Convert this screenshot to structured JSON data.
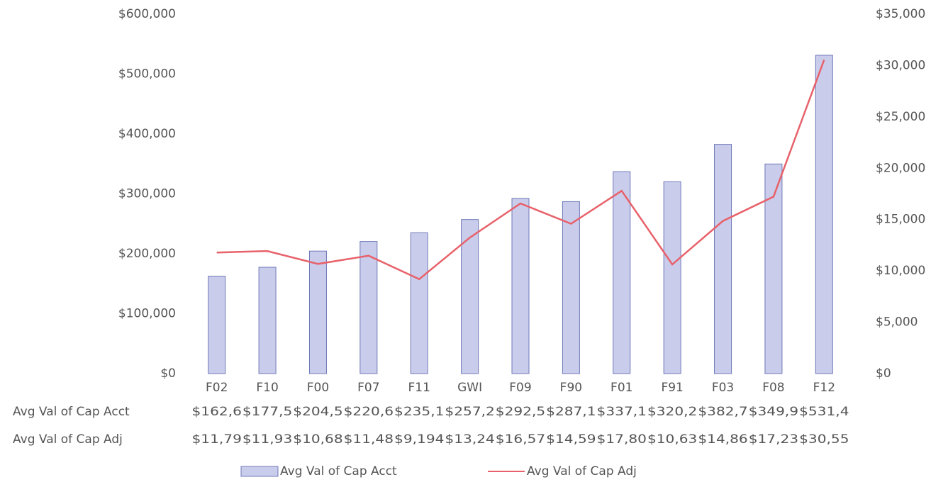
{
  "chart_data": {
    "type": "bar",
    "categories": [
      "F02",
      "F10",
      "F00",
      "F07",
      "F11",
      "GWI",
      "F09",
      "F90",
      "F01",
      "F91",
      "F03",
      "F08",
      "F12"
    ],
    "series": [
      {
        "name": "Avg Val of Cap Acct",
        "type": "bar",
        "color": "#c9cdeb",
        "edge": "#6f78b8",
        "values": [
          162600,
          177500,
          204500,
          220600,
          235100,
          257200,
          292500,
          287100,
          337100,
          320200,
          382700,
          349900,
          531400
        ],
        "value_labels": [
          "$162,6",
          "$177,5",
          "$204,5",
          "$220,6",
          "$235,1",
          "$257,2",
          "$292,5",
          "$287,1",
          "$337,1",
          "$320,2",
          "$382,7",
          "$349,9",
          "$531,4"
        ]
      },
      {
        "name": "Avg Val of Cap Adj",
        "type": "line",
        "axis": "y2",
        "color": "#e8616a",
        "values": [
          11790,
          11930,
          10680,
          11480,
          9194,
          13240,
          16570,
          14590,
          17800,
          10630,
          14860,
          17230,
          30550
        ],
        "value_labels": [
          "$11,79",
          "$11,93",
          "$10,68",
          "$11,48",
          "$9,194",
          "$13,24",
          "$16,57",
          "$14,59",
          "$17,80",
          "$10,63",
          "$14,86",
          "$17,23",
          "$30,55"
        ]
      }
    ],
    "ylim": [
      0,
      600000
    ],
    "yticks": [
      {
        "value": 0,
        "label": "$0"
      },
      {
        "value": 100000,
        "label": "$100,000"
      },
      {
        "value": 200000,
        "label": "$200,000"
      },
      {
        "value": 300000,
        "label": "$300,000"
      },
      {
        "value": 400000,
        "label": "$400,000"
      },
      {
        "value": 500000,
        "label": "$500,000"
      },
      {
        "value": 600000,
        "label": "$600,000"
      }
    ],
    "y2lim": [
      0,
      35000
    ],
    "y2ticks": [
      {
        "value": 0,
        "label": "$0"
      },
      {
        "value": 5000,
        "label": "$5,000"
      },
      {
        "value": 10000,
        "label": "$10,000"
      },
      {
        "value": 15000,
        "label": "$15,000"
      },
      {
        "value": 20000,
        "label": "$20,000"
      },
      {
        "value": 25000,
        "label": "$25,000"
      },
      {
        "value": 30000,
        "label": "$30,000"
      },
      {
        "value": 35000,
        "label": "$35,000"
      }
    ],
    "grid": false,
    "legend": "bottom"
  }
}
